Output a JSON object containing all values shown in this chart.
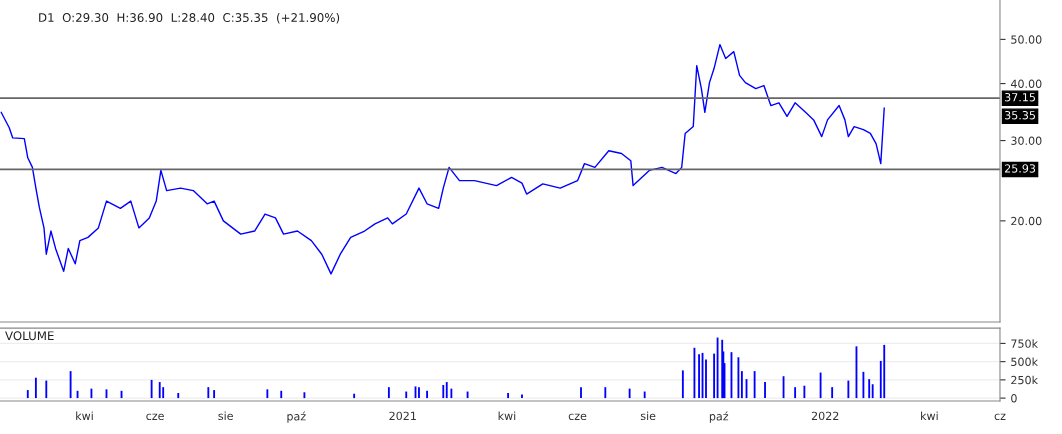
{
  "chart_data": [
    {
      "type": "line",
      "title": "D1  O:29.30  H:36.90  L:28.40  C:35.35  (+21.90%)",
      "log": "y",
      "tick_labels": "y",
      "xlim": [
        "2020-01-19",
        "2022-06-01"
      ],
      "ylim": [
        12,
        61
      ],
      "yticks": [
        {
          "value": 20,
          "label": "20.00"
        },
        {
          "value": 30,
          "label": "30.00"
        },
        {
          "value": 40,
          "label": "40.00"
        },
        {
          "value": 50,
          "label": "50.00"
        }
      ],
      "series": [
        {
          "color": "#0000ff",
          "x": [
            "2020-01-20",
            "2020-01-27",
            "2020-01-30",
            "2020-02-09",
            "2020-02-12",
            "2020-02-16",
            "2020-02-19",
            "2020-02-22",
            "2020-02-26",
            "2020-02-28",
            "2020-03-03",
            "2020-03-07",
            "2020-03-14",
            "2020-03-18",
            "2020-03-24",
            "2020-03-28",
            "2020-04-04",
            "2020-04-13",
            "2020-04-20",
            "2020-05-02",
            "2020-05-11",
            "2020-05-18",
            "2020-05-27",
            "2020-06-02",
            "2020-06-06",
            "2020-06-11",
            "2020-06-23",
            "2020-07-04",
            "2020-07-16",
            "2020-07-22",
            "2020-07-30",
            "2020-08-14",
            "2020-08-26",
            "2020-09-04",
            "2020-09-13",
            "2020-09-20",
            "2020-10-02",
            "2020-10-14",
            "2020-10-23",
            "2020-10-31",
            "2020-11-08",
            "2020-11-17",
            "2020-11-29",
            "2020-12-08",
            "2020-12-19",
            "2020-12-23",
            "2021-01-04",
            "2021-01-15",
            "2021-01-22",
            "2021-02-01",
            "2021-02-05",
            "2021-02-10",
            "2021-02-19",
            "2021-03-04",
            "2021-03-23",
            "2021-04-05",
            "2021-04-14",
            "2021-04-18",
            "2021-05-02",
            "2021-05-17",
            "2021-06-01",
            "2021-06-07",
            "2021-06-16",
            "2021-06-28",
            "2021-07-09",
            "2021-07-17",
            "2021-07-19",
            "2021-08-02",
            "2021-08-13",
            "2021-08-25",
            "2021-08-30",
            "2021-09-02",
            "2021-09-09",
            "2021-09-12",
            "2021-09-16",
            "2021-09-19",
            "2021-09-23",
            "2021-09-27",
            "2021-10-02",
            "2021-10-07",
            "2021-10-14",
            "2021-10-19",
            "2021-10-24",
            "2021-11-02",
            "2021-11-09",
            "2021-11-15",
            "2021-11-22",
            "2021-11-29",
            "2021-12-06",
            "2021-12-15",
            "2021-12-22",
            "2021-12-29",
            "2022-01-03",
            "2022-01-13",
            "2022-01-18",
            "2022-01-21",
            "2022-01-26",
            "2022-02-03",
            "2022-02-09",
            "2022-02-14",
            "2022-02-18",
            "2022-02-21"
          ],
          "values": [
            34.6,
            32.0,
            30.4,
            30.3,
            27.5,
            26.2,
            23.6,
            21.4,
            19.3,
            16.9,
            19.0,
            17.4,
            15.5,
            17.4,
            16.1,
            18.1,
            18.4,
            19.3,
            22.1,
            21.3,
            22.1,
            19.3,
            20.3,
            22.1,
            25.8,
            23.3,
            23.6,
            23.3,
            21.8,
            22.1,
            20.0,
            18.7,
            19.0,
            20.7,
            20.3,
            18.7,
            19.0,
            18.1,
            16.9,
            15.3,
            16.9,
            18.4,
            19.0,
            19.7,
            20.3,
            19.7,
            20.7,
            23.6,
            21.8,
            21.3,
            23.6,
            26.2,
            24.5,
            24.5,
            23.9,
            24.9,
            24.2,
            22.9,
            24.1,
            23.6,
            24.5,
            26.7,
            26.2,
            28.5,
            28.1,
            27.1,
            23.9,
            25.8,
            26.2,
            25.4,
            26.2,
            31.1,
            32.2,
            43.8,
            39.0,
            34.6,
            40.2,
            43.2,
            48.7,
            45.4,
            47.0,
            41.7,
            40.2,
            39.0,
            39.6,
            35.8,
            36.3,
            33.9,
            36.3,
            34.6,
            33.3,
            30.6,
            33.3,
            35.8,
            33.3,
            30.6,
            32.2,
            31.7,
            31.1,
            29.5,
            26.7,
            35.35
          ]
        }
      ],
      "ref_lines": [
        {
          "axis": "y",
          "value": 37.15,
          "label": "37.15",
          "color": "#666666"
        },
        {
          "axis": "y",
          "value": 25.93,
          "label": "25.93",
          "color": "#666666"
        }
      ],
      "annotations": [
        "35.35"
      ]
    },
    {
      "type": "bar",
      "title": "VOLUME",
      "grid": "y",
      "xlim": [
        "2020-01-19",
        "2022-06-01"
      ],
      "ylim": [
        -40000,
        960000
      ],
      "xticks": [
        {
          "value": "2020-04-01",
          "label": "kwi"
        },
        {
          "value": "2020-06-01",
          "label": "cze"
        },
        {
          "value": "2020-08-01",
          "label": "sie"
        },
        {
          "value": "2020-10-01",
          "label": "paź"
        },
        {
          "value": "2021-01-01",
          "label": "2021"
        },
        {
          "value": "2021-04-01",
          "label": "kwi"
        },
        {
          "value": "2021-06-01",
          "label": "cze"
        },
        {
          "value": "2021-08-01",
          "label": "sie"
        },
        {
          "value": "2021-10-01",
          "label": "paź"
        },
        {
          "value": "2022-01-01",
          "label": "2022"
        },
        {
          "value": "2022-04-01",
          "label": "kwi"
        },
        {
          "value": "2022-06-01",
          "label": "cz"
        }
      ],
      "yticks": [
        0,
        {
          "value": 250000,
          "label": "250k"
        },
        {
          "value": 500000,
          "label": "500k"
        },
        {
          "value": 750000,
          "label": "750k"
        }
      ],
      "series": [
        {
          "color": "#0000ff",
          "x": [
            "2020-02-12",
            "2020-02-19",
            "2020-02-28",
            "2020-03-20",
            "2020-03-26",
            "2020-04-07",
            "2020-04-20",
            "2020-05-03",
            "2020-05-29",
            "2020-06-05",
            "2020-06-08",
            "2020-06-21",
            "2020-07-17",
            "2020-07-22",
            "2020-09-06",
            "2020-09-18",
            "2020-10-08",
            "2020-11-20",
            "2020-12-20",
            "2021-01-04",
            "2021-01-12",
            "2021-01-15",
            "2021-01-22",
            "2021-02-05",
            "2021-02-08",
            "2021-02-12",
            "2021-02-26",
            "2021-04-02",
            "2021-04-14",
            "2021-06-04",
            "2021-06-25",
            "2021-07-16",
            "2021-07-29",
            "2021-08-31",
            "2021-09-10",
            "2021-09-14",
            "2021-09-17",
            "2021-09-20",
            "2021-09-27",
            "2021-09-30",
            "2021-10-04",
            "2021-10-05",
            "2021-10-06",
            "2021-10-12",
            "2021-10-18",
            "2021-10-21",
            "2021-10-25",
            "2021-11-01",
            "2021-11-10",
            "2021-11-26",
            "2021-12-06",
            "2021-12-14",
            "2021-12-28",
            "2022-01-07",
            "2022-01-21",
            "2022-01-28",
            "2022-02-03",
            "2022-02-08",
            "2022-02-11",
            "2022-02-18",
            "2022-02-21"
          ],
          "values": [
            110000,
            280000,
            240000,
            370000,
            100000,
            130000,
            120000,
            100000,
            250000,
            220000,
            150000,
            70000,
            150000,
            110000,
            120000,
            100000,
            80000,
            60000,
            150000,
            90000,
            160000,
            150000,
            100000,
            180000,
            220000,
            130000,
            90000,
            70000,
            50000,
            150000,
            150000,
            130000,
            90000,
            380000,
            690000,
            600000,
            620000,
            530000,
            610000,
            830000,
            800000,
            640000,
            480000,
            630000,
            560000,
            370000,
            260000,
            370000,
            220000,
            300000,
            150000,
            170000,
            350000,
            150000,
            240000,
            710000,
            360000,
            260000,
            190000,
            510000,
            730000
          ]
        }
      ]
    }
  ]
}
